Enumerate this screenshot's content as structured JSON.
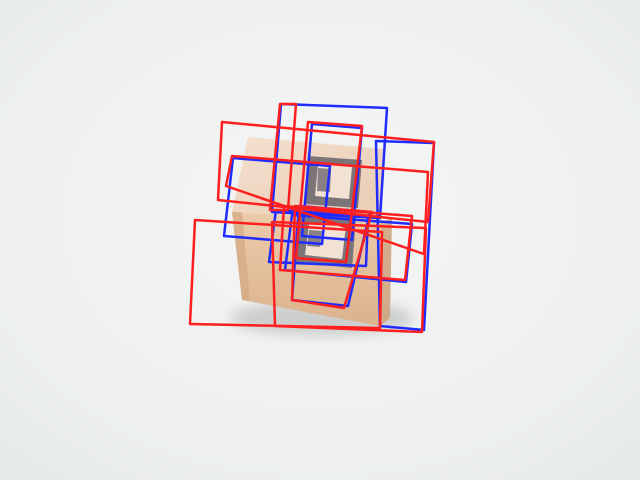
{
  "scene": {
    "background": "#eef1f0",
    "object": "wooden-block",
    "block_colors": {
      "top_face": "#f0d8c2",
      "front_face": "#e6c3a0",
      "side_face": "#d9b38c",
      "marker_frame": "#7b7478",
      "marker_inner": "#f2e2d3",
      "shadow": "#9fa3a0"
    },
    "overlay_colors": {
      "red": "#ff1f1f",
      "blue": "#1f2bff"
    }
  }
}
